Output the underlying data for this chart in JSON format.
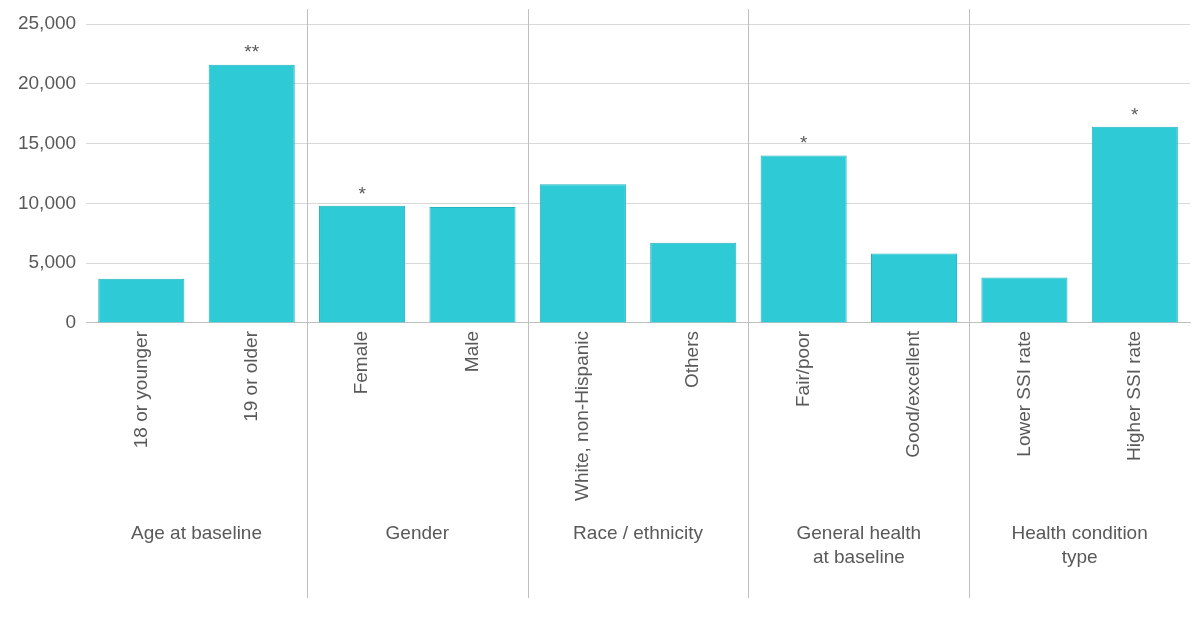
{
  "chart_data": {
    "type": "bar",
    "categories": [
      "18 or younger",
      "19 or older",
      "Female",
      "Male",
      "White, non-Hispanic",
      "Others",
      "Fair/poor",
      "Good/excellent",
      "Lower SSI rate",
      "Higher SSI rate"
    ],
    "values": [
      3700,
      21600,
      9800,
      9700,
      11600,
      6700,
      14000,
      5800,
      3800,
      16400
    ],
    "color": "#2ecbd6",
    "ylim": [
      0,
      25000
    ],
    "yticks": [
      {
        "value": 0,
        "label": "0"
      },
      {
        "value": 5000,
        "label": "5,000"
      },
      {
        "value": 10000,
        "label": "10,000"
      },
      {
        "value": 15000,
        "label": "15,000"
      },
      {
        "value": 20000,
        "label": "20,000"
      },
      {
        "value": 25000,
        "label": "25,000"
      }
    ],
    "grid": "y",
    "annotations": [
      {
        "text": "**",
        "x": "19 or older",
        "y": 21600
      },
      {
        "text": "*",
        "x": "Female",
        "y": 9800
      },
      {
        "text": "*",
        "x": "Fair/poor",
        "y": 14000
      },
      {
        "text": "*",
        "x": "Higher SSI rate",
        "y": 16400
      },
      "Age at baseline",
      "Gender",
      "Race / ethnicity",
      "General health at baseline",
      "Health condition type"
    ]
  }
}
